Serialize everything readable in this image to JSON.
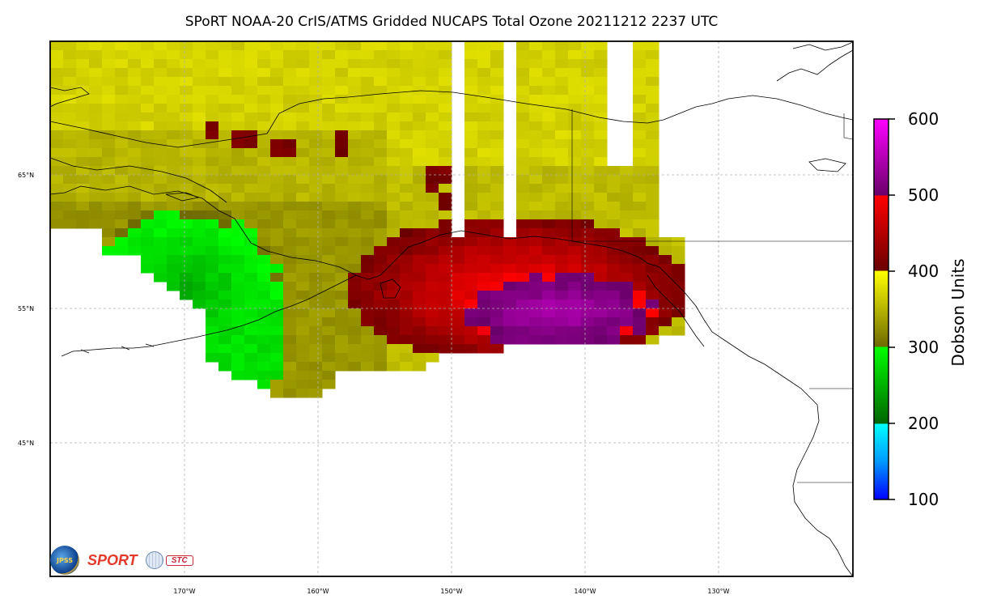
{
  "title": "SPoRT NOAA-20 CrIS/ATMS Gridded NUCAPS Total Ozone 20211212 2237 UTC",
  "lat_labels": [
    "65°N",
    "55°N",
    "45°N"
  ],
  "lon_labels": [
    "170°W",
    "160°W",
    "150°W",
    "140°W",
    "130°W"
  ],
  "colorbar": {
    "title": "Dobson Units",
    "ticks": [
      "600",
      "500",
      "400",
      "300",
      "200",
      "100"
    ],
    "stops": [
      {
        "value": 100,
        "color": "#0000ff"
      },
      {
        "value": 150,
        "color": "#0099ff"
      },
      {
        "value": 199,
        "color": "#00ffff"
      },
      {
        "value": 200,
        "color": "#006400"
      },
      {
        "value": 300,
        "color": "#00ff00"
      },
      {
        "value": 301,
        "color": "#6e6a00"
      },
      {
        "value": 400,
        "color": "#ffff00"
      },
      {
        "value": 401,
        "color": "#6a0000"
      },
      {
        "value": 499,
        "color": "#ff0000"
      },
      {
        "value": 500,
        "color": "#6a006a"
      },
      {
        "value": 600,
        "color": "#ff00ff"
      }
    ]
  },
  "logos": {
    "jpss": "JPSS",
    "sport": "SPORT",
    "stc": "STC"
  }
}
